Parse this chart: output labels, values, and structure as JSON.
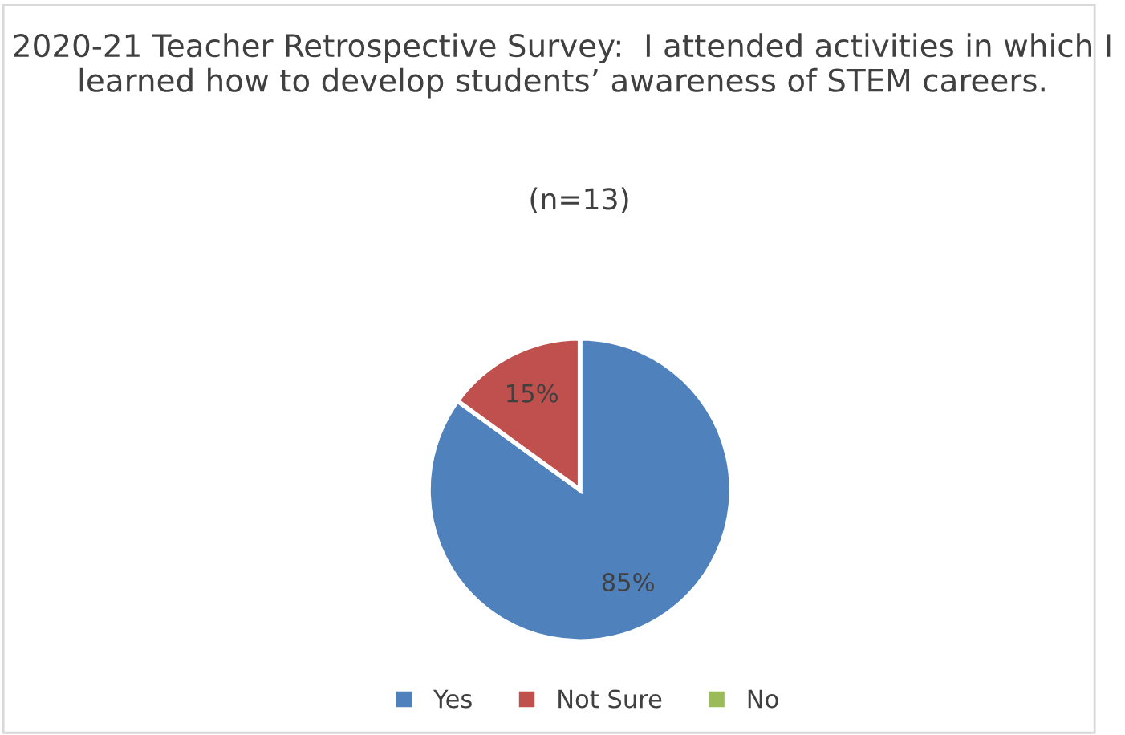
{
  "chart_data": {
    "type": "pie",
    "title": "2020-21 Teacher Retrospective Survey:  I attended activities in which I learned how to develop students’ awareness of STEM careers.",
    "subtitle": "(n=13)",
    "categories": [
      "Yes",
      "Not Sure",
      "No"
    ],
    "values": [
      85,
      15,
      0
    ],
    "colors": [
      "#4f81bd",
      "#c0504d",
      "#9bbb59"
    ],
    "value_labels": [
      "85%",
      "15%",
      null
    ],
    "legend": "bottom"
  }
}
